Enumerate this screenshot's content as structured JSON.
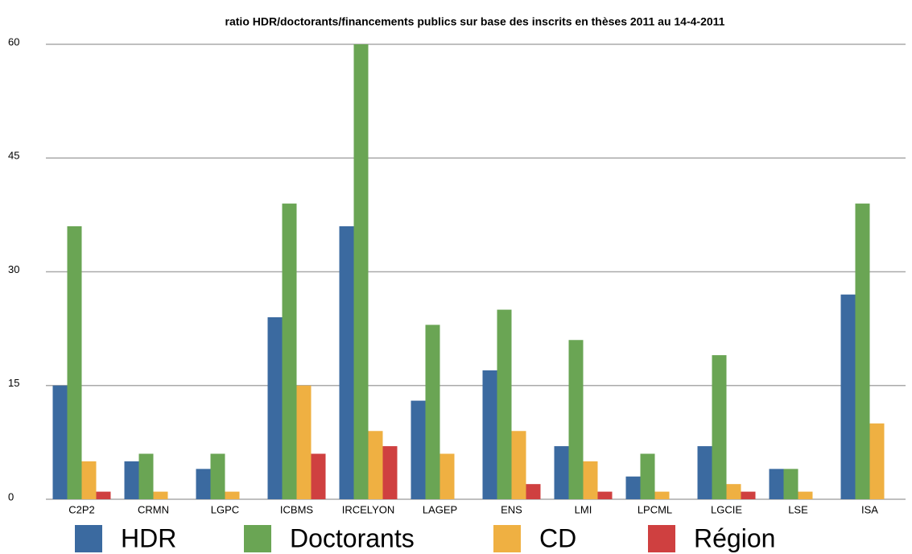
{
  "chart_data": {
    "type": "bar",
    "title": "ratio HDR/doctorants/financements publics sur base des inscrits en thèses 2011 au 14-4-2011",
    "categories": [
      "C2P2",
      "CRMN",
      "LGPC",
      "ICBMS",
      "IRCELYON",
      "LAGEP",
      "ENS",
      "LMI",
      "LPCML",
      "LGCIE",
      "LSE",
      "ISA"
    ],
    "series": [
      {
        "name": "HDR",
        "color": "#3b6aa0",
        "values": [
          15,
          5,
          4,
          24,
          36,
          13,
          17,
          7,
          3,
          7,
          4,
          27
        ]
      },
      {
        "name": "Doctorants",
        "color": "#6aa554",
        "values": [
          36,
          6,
          6,
          39,
          60,
          23,
          25,
          21,
          6,
          19,
          4,
          39
        ]
      },
      {
        "name": "CD",
        "color": "#efb042",
        "values": [
          5,
          1,
          1,
          15,
          9,
          6,
          9,
          5,
          1,
          2,
          1,
          10
        ]
      },
      {
        "name": "Région",
        "color": "#cf4040",
        "values": [
          1,
          0,
          0,
          6,
          7,
          0,
          2,
          1,
          0,
          1,
          0,
          0
        ]
      }
    ],
    "ylim": [
      0,
      60
    ],
    "yticks": [
      0,
      15,
      30,
      45,
      60
    ],
    "grid": true,
    "legend": "bottom"
  }
}
